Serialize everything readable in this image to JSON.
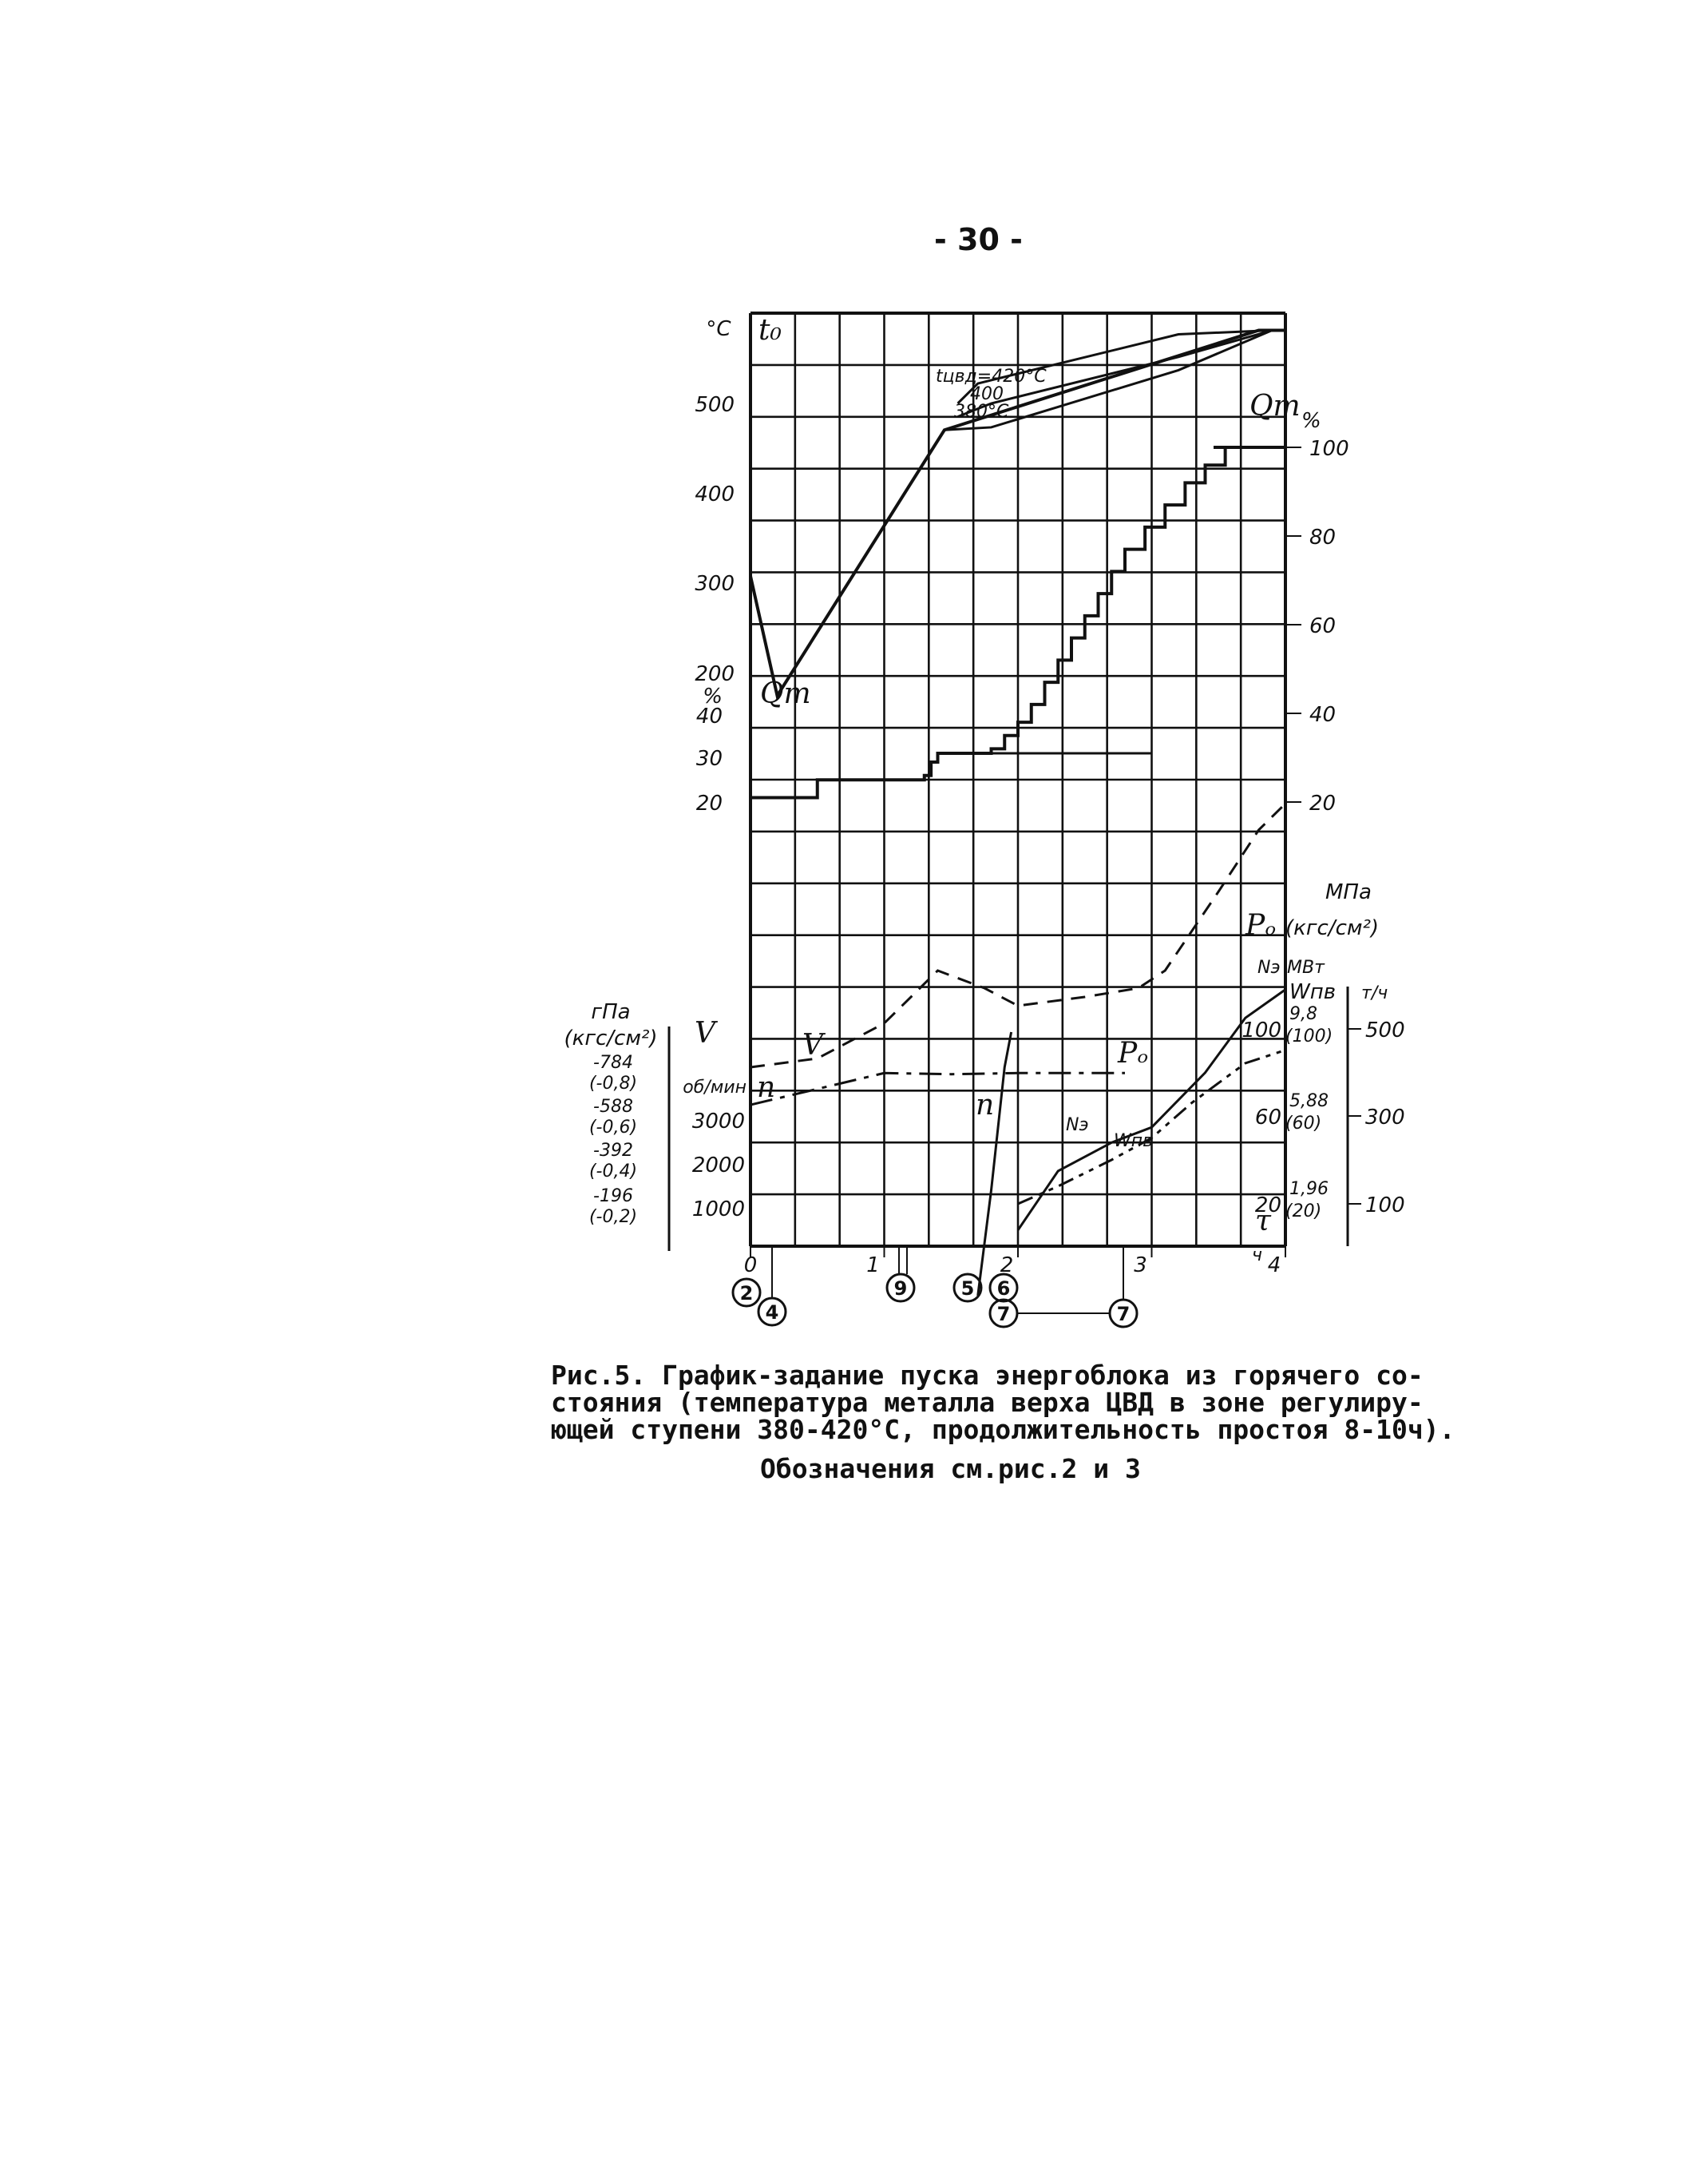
{
  "page": {
    "number": "- 30 -"
  },
  "caption": {
    "line1": "Рис.5. График-задание пуска энергоблока из горячего со-",
    "line2": "стояния (температура металла верха ЦВД в зоне регулиру-",
    "line3": "ющей ступени 380-420°С, продолжительность простоя 8-10ч).",
    "legend": "Обозначения см.рис.2 и 3"
  },
  "chart_data": {
    "type": "line",
    "title": "",
    "x_axis": {
      "label": "τ",
      "unit": "ч",
      "ticks": [
        "0",
        "1",
        "2",
        "3",
        "4"
      ],
      "range": [
        0,
        4
      ]
    },
    "panels": [
      {
        "name": "upper",
        "left_axis": {
          "unit": "°C",
          "symbol": "t₀",
          "ticks": [
            "500",
            "400",
            "300",
            "200"
          ],
          "range": [
            200,
            600
          ]
        },
        "right_axis": {
          "unit": "%",
          "symbol": "Qт",
          "ticks": [
            "100",
            "80",
            "60",
            "40",
            "20"
          ],
          "range": [
            20,
            100
          ]
        },
        "left_axis_2": {
          "unit": "%",
          "symbol": "Qт",
          "ticks": [
            "40",
            "30",
            "20"
          ]
        },
        "series": [
          {
            "name": "t₀",
            "x": [
              0.0,
              0.2,
              1.45,
              3.8,
              4.0
            ],
            "y": [
              370,
              280,
              480,
              555,
              555
            ]
          },
          {
            "name": "tцвд = 420°C",
            "x": [
              1.55,
              1.7,
              3.2,
              3.9
            ],
            "y": [
              500,
              515,
              552,
              555
            ]
          },
          {
            "name": "400",
            "x": [
              1.55,
              1.8,
              3.2,
              3.9
            ],
            "y": [
              490,
              500,
              535,
              555
            ]
          },
          {
            "name": "380°C",
            "x": [
              1.45,
              1.8,
              3.2,
              3.9
            ],
            "y": [
              480,
              482,
              525,
              555
            ]
          },
          {
            "name": "Qт",
            "step": true,
            "x": [
              0.0,
              0.35,
              0.5,
              1.3,
              1.3,
              1.35,
              1.35,
              1.4,
              1.4,
              1.6,
              1.8,
              1.9,
              2.0,
              2.1,
              2.2,
              2.3,
              2.4,
              2.5,
              2.6,
              2.7,
              2.8,
              2.95,
              3.1,
              3.25,
              3.4,
              3.55,
              3.65,
              4.0
            ],
            "y": [
              21,
              21,
              25,
              25,
              26,
              27,
              29,
              30,
              31,
              31,
              32,
              35,
              38,
              42,
              47,
              52,
              57,
              62,
              67,
              72,
              77,
              82,
              87,
              92,
              96,
              100,
              100,
              100
            ]
          }
        ]
      },
      {
        "name": "lower",
        "left_axis": {
          "unit": "об/мин",
          "symbol": "n",
          "ticks": [
            "3000",
            "2000",
            "1000"
          ]
        },
        "left_axis_2": {
          "unit": "гПа (кгс/см²)",
          "symbol": "V",
          "ticks": [
            "-784 (-0,8)",
            "-588 (-0,6)",
            "-392 (-0,4)",
            "-196 (-0,2)"
          ]
        },
        "right_axis_1": {
          "unit": "МВт",
          "symbol": "Nэ",
          "ticks": [
            "100",
            "60",
            "20"
          ]
        },
        "right_axis_2": {
          "unit": "МПа (кгс/см²)",
          "symbol": "Pₒ",
          "ticks": [
            "9,8 (100)",
            "5,88 (60)",
            "1,96 (20)"
          ]
        },
        "right_axis_3": {
          "unit": "т/ч",
          "symbol": "Wпв",
          "ticks": [
            "500",
            "300",
            "100"
          ]
        },
        "series": [
          {
            "name": "V",
            "x": [
              0.0,
              0.5,
              1.0,
              1.5,
              2.0,
              2.5,
              2.8
            ],
            "y": [
              -650,
              -720,
              -790,
              -785,
              -790,
              -790,
              -790
            ]
          },
          {
            "name": "n",
            "x": [
              0.0,
              0.5,
              1.0,
              1.4,
              1.75,
              2.0,
              2.5,
              2.9,
              3.1,
              3.5,
              3.8,
              4.0
            ],
            "y": [
              2600,
              2700,
              3100,
              3700,
              3500,
              3300,
              3400,
              3500,
              3700,
              4600,
              5300,
              5600
            ]
          },
          {
            "name": "n (подъём)",
            "x": [
              1.7,
              1.8,
              1.9,
              1.95
            ],
            "y": [
              0,
              1200,
              2600,
              3000
            ]
          },
          {
            "name": "Nэ",
            "x": [
              2.0,
              2.3,
              2.7,
              3.0,
              3.4,
              3.7,
              4.0
            ],
            "y": [
              8,
              35,
              48,
              55,
              80,
              105,
              118
            ]
          },
          {
            "name": "Wпв",
            "x": [
              2.0,
              2.3,
              2.7,
              3.0,
              3.3,
              3.7,
              4.0
            ],
            "y": [
              100,
              140,
              200,
              250,
              330,
              420,
              450
            ]
          }
        ]
      }
    ],
    "markers": [
      {
        "label": "2",
        "x": 0.0
      },
      {
        "label": "4",
        "x": 0.2
      },
      {
        "label": "9",
        "x": 1.2
      },
      {
        "label": "5",
        "x": 1.7
      },
      {
        "label": "6",
        "x": 2.0
      },
      {
        "label": "7",
        "x": 2.0
      },
      {
        "label": "7",
        "x": 2.8
      }
    ],
    "curve_labels": [
      "t₀",
      "Qт",
      "tцвд=420°C",
      "400",
      "380°C",
      "V",
      "n",
      "Pₒ",
      "Nэ",
      "Wпв"
    ],
    "grid": true
  }
}
